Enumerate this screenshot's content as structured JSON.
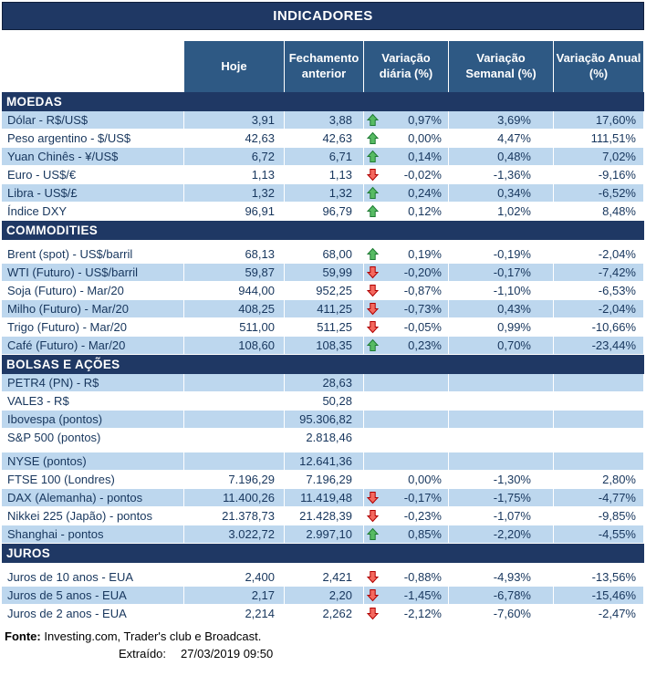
{
  "chart_data": {
    "type": "table",
    "title": "INDICADORES",
    "columns": [
      "",
      "Hoje",
      "Fechamento anterior",
      "Variação diária (%)",
      "Variação Semanal (%)",
      "Variação Anual (%)"
    ],
    "sections": [
      {
        "name": "MOEDAS",
        "gap_after_band": false,
        "rows": [
          {
            "label": "Dólar - R$/US$",
            "hoje": "3,91",
            "fechamento": "3,88",
            "arrow": "up",
            "var_diaria": "0,97%",
            "var_semanal": "3,69%",
            "var_anual": "17,60%",
            "shade": true
          },
          {
            "label": "Peso argentino - $/US$",
            "hoje": "42,63",
            "fechamento": "42,63",
            "arrow": "up",
            "var_diaria": "0,00%",
            "var_semanal": "4,47%",
            "var_anual": "111,51%",
            "shade": false
          },
          {
            "label": "Yuan Chinês - ¥/US$",
            "hoje": "6,72",
            "fechamento": "6,71",
            "arrow": "up",
            "var_diaria": "0,14%",
            "var_semanal": "0,48%",
            "var_anual": "7,02%",
            "shade": true
          },
          {
            "label": "Euro - US$/€",
            "hoje": "1,13",
            "fechamento": "1,13",
            "arrow": "down",
            "var_diaria": "-0,02%",
            "var_semanal": "-1,36%",
            "var_anual": "-9,16%",
            "shade": false
          },
          {
            "label": "Libra - US$/£",
            "hoje": "1,32",
            "fechamento": "1,32",
            "arrow": "up",
            "var_diaria": "0,24%",
            "var_semanal": "0,34%",
            "var_anual": "-6,52%",
            "shade": true
          },
          {
            "label": "Índice DXY",
            "hoje": "96,91",
            "fechamento": "96,79",
            "arrow": "up",
            "var_diaria": "0,12%",
            "var_semanal": "1,02%",
            "var_anual": "8,48%",
            "shade": false
          }
        ]
      },
      {
        "name": "COMMODITIES",
        "gap_after_band": true,
        "rows": [
          {
            "label": "Brent (spot) - US$/barril",
            "hoje": "68,13",
            "fechamento": "68,00",
            "arrow": "up",
            "var_diaria": "0,19%",
            "var_semanal": "-0,19%",
            "var_anual": "-2,04%",
            "shade": false
          },
          {
            "label": "WTI (Futuro) - US$/barril",
            "hoje": "59,87",
            "fechamento": "59,99",
            "arrow": "down",
            "var_diaria": "-0,20%",
            "var_semanal": "-0,17%",
            "var_anual": "-7,42%",
            "shade": true
          },
          {
            "label": "Soja (Futuro) - Mar/20",
            "hoje": "944,00",
            "fechamento": "952,25",
            "arrow": "down",
            "var_diaria": "-0,87%",
            "var_semanal": "-1,10%",
            "var_anual": "-6,53%",
            "shade": false
          },
          {
            "label": "Milho (Futuro) - Mar/20",
            "hoje": "408,25",
            "fechamento": "411,25",
            "arrow": "down",
            "var_diaria": "-0,73%",
            "var_semanal": "0,43%",
            "var_anual": "-2,04%",
            "shade": true
          },
          {
            "label": "Trigo (Futuro) - Mar/20",
            "hoje": "511,00",
            "fechamento": "511,25",
            "arrow": "down",
            "var_diaria": "-0,05%",
            "var_semanal": "0,99%",
            "var_anual": "-10,66%",
            "shade": false
          },
          {
            "label": "Café (Futuro) - Mar/20",
            "hoje": "108,60",
            "fechamento": "108,35",
            "arrow": "up",
            "var_diaria": "0,23%",
            "var_semanal": "0,70%",
            "var_anual": "-23,44%",
            "shade": true
          }
        ]
      },
      {
        "name": "BOLSAS E AÇÕES",
        "gap_after_band": false,
        "rows": [
          {
            "label": "PETR4 (PN) - R$",
            "hoje": "",
            "fechamento": "28,63",
            "arrow": "",
            "var_diaria": "",
            "var_semanal": "",
            "var_anual": "",
            "shade": true
          },
          {
            "label": "VALE3 - R$",
            "hoje": "",
            "fechamento": "50,28",
            "arrow": "",
            "var_diaria": "",
            "var_semanal": "",
            "var_anual": "",
            "shade": false
          },
          {
            "label": "Ibovespa (pontos)",
            "hoje": "",
            "fechamento": "95.306,82",
            "arrow": "",
            "var_diaria": "",
            "var_semanal": "",
            "var_anual": "",
            "shade": true
          },
          {
            "label": "S&P 500 (pontos)",
            "hoje": "",
            "fechamento": "2.818,46",
            "arrow": "",
            "var_diaria": "",
            "var_semanal": "",
            "var_anual": "",
            "shade": false
          },
          {
            "label": "NYSE (pontos)",
            "hoje": "",
            "fechamento": "12.641,36",
            "arrow": "",
            "var_diaria": "",
            "var_semanal": "",
            "var_anual": "",
            "shade": true,
            "gap_before": true
          },
          {
            "label": "FTSE 100 (Londres)",
            "hoje": "7.196,29",
            "fechamento": "7.196,29",
            "arrow": "",
            "var_diaria": "0,00%",
            "var_semanal": "-1,30%",
            "var_anual": "2,80%",
            "shade": false
          },
          {
            "label": "DAX (Alemanha) - pontos",
            "hoje": "11.400,26",
            "fechamento": "11.419,48",
            "arrow": "down",
            "var_diaria": "-0,17%",
            "var_semanal": "-1,75%",
            "var_anual": "-4,77%",
            "shade": true
          },
          {
            "label": "Nikkei 225 (Japão) - pontos",
            "hoje": "21.378,73",
            "fechamento": "21.428,39",
            "arrow": "down",
            "var_diaria": "-0,23%",
            "var_semanal": "-1,07%",
            "var_anual": "-9,85%",
            "shade": false
          },
          {
            "label": "Shanghai - pontos",
            "hoje": "3.022,72",
            "fechamento": "2.997,10",
            "arrow": "up",
            "var_diaria": "0,85%",
            "var_semanal": "-2,20%",
            "var_anual": "-4,55%",
            "shade": true
          }
        ]
      },
      {
        "name": "JUROS",
        "gap_after_band": true,
        "rows": [
          {
            "label": "Juros de 10 anos - EUA",
            "hoje": "2,400",
            "fechamento": "2,421",
            "arrow": "down",
            "var_diaria": "-0,88%",
            "var_semanal": "-4,93%",
            "var_anual": "-13,56%",
            "shade": false
          },
          {
            "label": "Juros de 5 anos - EUA",
            "hoje": "2,17",
            "fechamento": "2,20",
            "arrow": "down",
            "var_diaria": "-1,45%",
            "var_semanal": "-6,78%",
            "var_anual": "-15,46%",
            "shade": true
          },
          {
            "label": "Juros de 2 anos - EUA",
            "hoje": "2,214",
            "fechamento": "2,262",
            "arrow": "down",
            "var_diaria": "-2,12%",
            "var_semanal": "-7,60%",
            "var_anual": "-2,47%",
            "shade": false
          }
        ]
      }
    ],
    "footer": {
      "source_label": "Fonte:",
      "source_text": "Investing.com, Trader's club e Broadcast.",
      "extract_label": "Extraído:",
      "extract_value": "27/03/2019 09:50"
    }
  },
  "colors": {
    "band_bg": "#1F3864",
    "header_bg": "#2E5984",
    "row_shade": "#BDD7EE",
    "text": "#17365D",
    "arrow_up_fill": "#57BB63",
    "arrow_up_stroke": "#1E7B34",
    "arrow_down_fill": "#F4695F",
    "arrow_down_stroke": "#B00000"
  }
}
